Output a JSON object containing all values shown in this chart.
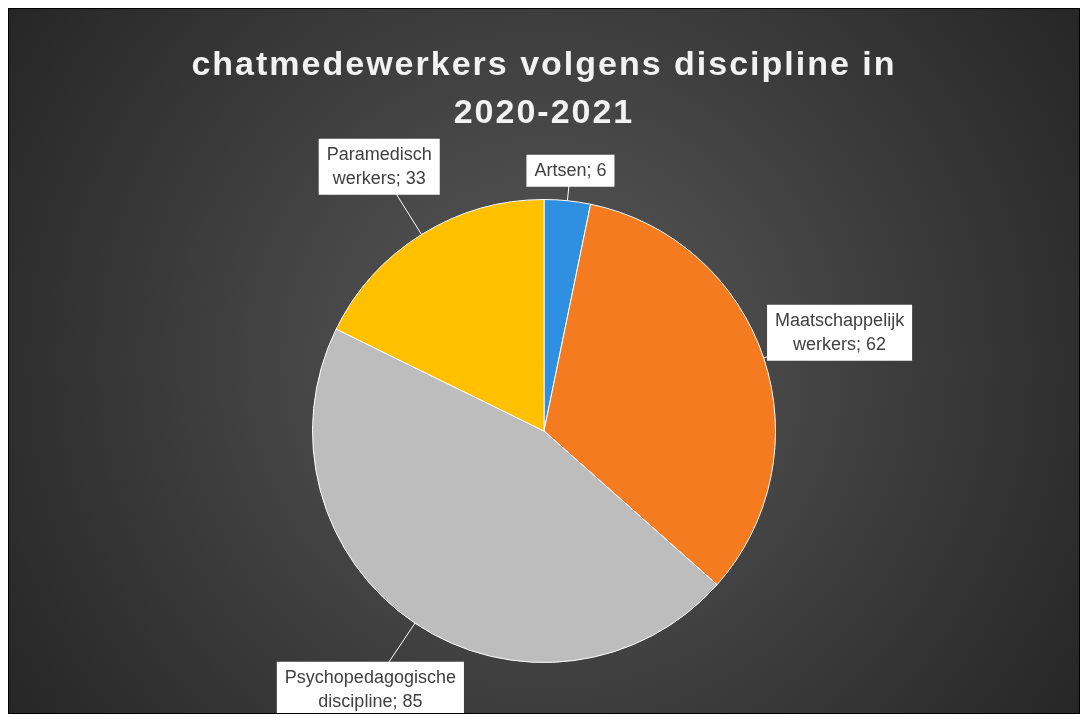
{
  "chart_data": {
    "type": "pie",
    "title": "chatmedewerkers volgens discipline in 2020-2021",
    "categories": [
      "Artsen",
      "Maatschappelijk werkers",
      "Psychopedagogische discipline",
      "Paramedisch werkers"
    ],
    "values": [
      6,
      62,
      85,
      33
    ],
    "colors": [
      "#2f8fe0",
      "#f47b20",
      "#bdbdbd",
      "#ffc000"
    ],
    "value_labels": [
      "; 6",
      "; 62",
      "; 85",
      "; 33"
    ],
    "legend": false
  }
}
